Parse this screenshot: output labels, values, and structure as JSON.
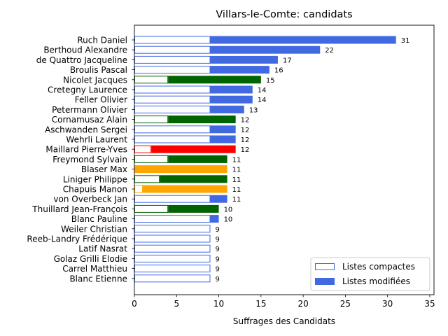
{
  "chart_data": {
    "type": "bar",
    "orientation": "horizontal",
    "stacked": true,
    "title": "Villars-le-Comte: candidats",
    "xlabel": "Suffrages des Candidats",
    "ylabel": "",
    "xlim": [
      0,
      35.5
    ],
    "xticks": [
      0,
      5,
      10,
      15,
      20,
      25,
      30,
      35
    ],
    "grid": false,
    "legend": {
      "position": "lower-right",
      "entries": [
        {
          "label": "Listes compactes",
          "style": "outline",
          "color": "#4169e1"
        },
        {
          "label": "Listes modifiées",
          "style": "filled",
          "color": "#4169e1"
        }
      ]
    },
    "categories": [
      "Ruch Daniel",
      "Berthoud Alexandre",
      "de Quattro Jacqueline",
      "Broulis Pascal",
      "Nicolet Jacques",
      "Cretegny Laurence",
      "Feller Olivier",
      "Petermann Olivier",
      "Cornamusaz Alain",
      "Aschwanden Sergei",
      "Wehrli Laurent",
      "Maillard Pierre-Yves",
      "Freymond Sylvain",
      "Blaser Max",
      "Liniger Philippe",
      "Chapuis Manon",
      "von Overbeck Jan",
      "Thuillard Jean-François",
      "Blanc Pauline",
      "Weiler Christian",
      "Reeb-Landry Frédérique",
      "Latif Nasrat",
      "Golaz Grilli Elodie",
      "Carrel Matthieu",
      "Blanc Etienne"
    ],
    "series": [
      {
        "name": "Listes compactes",
        "values": [
          9,
          9,
          9,
          9,
          4,
          9,
          9,
          9,
          4,
          9,
          9,
          2,
          4,
          0,
          3,
          1,
          9,
          4,
          9,
          9,
          9,
          9,
          9,
          9,
          9
        ]
      },
      {
        "name": "Listes modifiées",
        "values": [
          22,
          13,
          8,
          7,
          11,
          5,
          5,
          4,
          8,
          3,
          3,
          10,
          7,
          11,
          8,
          10,
          2,
          6,
          1,
          0,
          0,
          0,
          0,
          0,
          0
        ]
      }
    ],
    "totals": [
      31,
      22,
      17,
      16,
      15,
      14,
      14,
      13,
      12,
      12,
      12,
      12,
      11,
      11,
      11,
      11,
      11,
      10,
      10,
      9,
      9,
      9,
      9,
      9,
      9
    ],
    "bar_colors": [
      "#4169e1",
      "#4169e1",
      "#4169e1",
      "#4169e1",
      "#006400",
      "#4169e1",
      "#4169e1",
      "#4169e1",
      "#006400",
      "#4169e1",
      "#4169e1",
      "#ff0000",
      "#006400",
      "#ffa500",
      "#006400",
      "#ffa500",
      "#4169e1",
      "#006400",
      "#4169e1",
      "#4169e1",
      "#4169e1",
      "#4169e1",
      "#4169e1",
      "#4169e1",
      "#4169e1"
    ]
  }
}
